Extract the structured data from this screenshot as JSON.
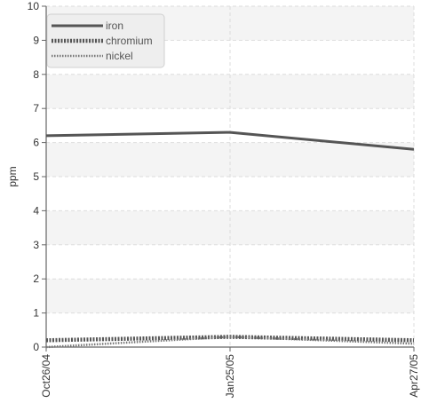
{
  "chart_data": {
    "type": "line",
    "title": "",
    "xlabel": "",
    "ylabel": "ppm",
    "ylim": [
      0,
      10
    ],
    "yticks": [
      "0",
      "1",
      "2",
      "3",
      "4",
      "5",
      "6",
      "7",
      "8",
      "9",
      "10"
    ],
    "categories": [
      "Oct26/04",
      "Jan25/05",
      "Apr27/05"
    ],
    "grid": true,
    "legend_position": "top-left",
    "series": [
      {
        "name": "iron",
        "values": [
          6.2,
          6.3,
          5.8
        ],
        "color": "#555555",
        "style": "solid"
      },
      {
        "name": "chromium",
        "values": [
          0.2,
          0.3,
          0.2
        ],
        "color": "#555555",
        "style": "dotted-thick"
      },
      {
        "name": "nickel",
        "values": [
          0.0,
          0.3,
          0.1
        ],
        "color": "#777777",
        "style": "dotted-thin"
      }
    ]
  }
}
